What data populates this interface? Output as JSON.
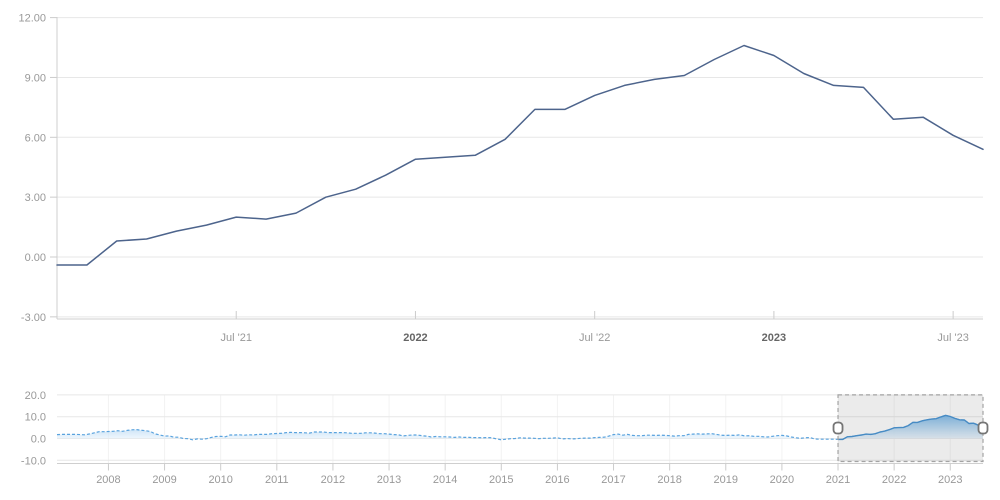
{
  "colors": {
    "background": "#ffffff",
    "grid": "#e7e7e7",
    "axis": "#cfcfcf",
    "tick": "#cccccc",
    "label": "#999999",
    "label_bold": "#666666",
    "main_line": "#4d648c",
    "nav_line": "#5aa3de",
    "nav_line_selected": "#3f8fd2",
    "nav_fill_top": "#7db9e8",
    "nav_fill_bottom": "#eaf4fc",
    "selection_fill": "rgba(120,120,120,0.15)",
    "selection_border": "#a3a3a3",
    "nav_year_gridline": "rgba(0,0,0,0.05)",
    "handle_fill": "#ffffff",
    "handle_border": "#757575"
  },
  "chart_data": [
    {
      "type": "line",
      "title": "",
      "xlabel": "",
      "ylabel": "",
      "ylim": [
        -3.25,
        12.3
      ],
      "grid": "horizontal",
      "legend_position": "none",
      "categories": [
        "Jan 2021",
        "Feb 2021",
        "Mar 2021",
        "Apr 2021",
        "May 2021",
        "Jun 2021",
        "Jul 2021",
        "Aug 2021",
        "Sep 2021",
        "Oct 2021",
        "Nov 2021",
        "Dec 2021",
        "Jan 2022",
        "Feb 2022",
        "Mar 2022",
        "Apr 2022",
        "May 2022",
        "Jun 2022",
        "Jul 2022",
        "Aug 2022",
        "Sep 2022",
        "Oct 2022",
        "Nov 2022",
        "Dec 2022",
        "Jan 2023",
        "Feb 2023",
        "Mar 2023",
        "Apr 2023",
        "May 2023",
        "Jun 2023",
        "Jul 2023",
        "Aug 2023"
      ],
      "values": [
        -0.4,
        -0.4,
        0.8,
        0.9,
        1.3,
        1.6,
        2.0,
        1.9,
        2.2,
        3.0,
        3.4,
        4.1,
        4.9,
        5.0,
        5.1,
        5.9,
        7.4,
        7.4,
        8.1,
        8.6,
        8.9,
        9.1,
        9.9,
        10.6,
        10.1,
        9.2,
        8.6,
        8.5,
        6.9,
        7.0,
        6.1,
        5.4
      ],
      "y_tick_labels": [
        {
          "value": 12,
          "label": "12.00"
        },
        {
          "value": 9,
          "label": "9.00"
        },
        {
          "value": 6,
          "label": "6.00"
        },
        {
          "value": 3,
          "label": "3.00"
        },
        {
          "value": 0,
          "label": "0.00"
        },
        {
          "value": -3,
          "label": "-3.00"
        }
      ],
      "x_tick_labels": [
        {
          "index": 6,
          "label": "Jul '21",
          "bold": false
        },
        {
          "index": 12,
          "label": "2022",
          "bold": true
        },
        {
          "index": 18,
          "label": "Jul '22",
          "bold": false
        },
        {
          "index": 24,
          "label": "2023",
          "bold": true
        },
        {
          "index": 30,
          "label": "Jul '23",
          "bold": false
        }
      ]
    },
    {
      "type": "area",
      "title": "",
      "role": "navigator",
      "x_start": "2007-02",
      "frequency": "monthly",
      "ylim": [
        -13,
        23
      ],
      "grid": "both",
      "legend_position": "none",
      "values": [
        1.8,
        1.9,
        1.9,
        1.9,
        1.9,
        1.8,
        1.7,
        2.1,
        2.6,
        3.1,
        3.1,
        3.2,
        3.3,
        3.6,
        3.3,
        3.7,
        4.0,
        4.1,
        3.8,
        3.6,
        3.2,
        2.1,
        1.6,
        1.1,
        1.2,
        0.6,
        0.6,
        0.0,
        -0.1,
        -0.6,
        -0.2,
        -0.3,
        -0.1,
        0.5,
        0.9,
        1.0,
        0.8,
        1.6,
        1.6,
        1.7,
        1.5,
        1.7,
        1.6,
        1.9,
        1.9,
        1.9,
        2.2,
        2.3,
        2.4,
        2.7,
        2.8,
        2.7,
        2.7,
        2.6,
        2.5,
        3.0,
        3.0,
        3.0,
        2.7,
        2.7,
        2.7,
        2.7,
        2.6,
        2.4,
        2.4,
        2.4,
        2.6,
        2.6,
        2.5,
        2.2,
        2.2,
        2.0,
        1.8,
        1.7,
        1.2,
        1.4,
        1.6,
        1.6,
        1.3,
        1.1,
        0.7,
        0.9,
        0.8,
        0.8,
        0.7,
        0.5,
        0.7,
        0.5,
        0.5,
        0.4,
        0.4,
        0.3,
        0.4,
        0.3,
        -0.2,
        -0.6,
        -0.3,
        -0.1,
        0.0,
        0.3,
        0.2,
        0.2,
        0.1,
        -0.1,
        0.1,
        0.1,
        0.2,
        0.3,
        -0.2,
        0.0,
        -0.2,
        -0.1,
        0.1,
        0.2,
        0.2,
        0.4,
        0.5,
        0.6,
        1.1,
        1.8,
        2.0,
        1.5,
        1.9,
        1.4,
        1.3,
        1.3,
        1.5,
        1.5,
        1.4,
        1.5,
        1.4,
        1.3,
        1.1,
        1.3,
        1.3,
        1.9,
        2.0,
        2.1,
        2.0,
        2.1,
        2.2,
        1.9,
        1.5,
        1.4,
        1.5,
        1.4,
        1.7,
        1.2,
        1.3,
        1.0,
        1.0,
        0.8,
        0.7,
        1.0,
        1.3,
        1.4,
        1.2,
        0.7,
        0.3,
        0.1,
        0.3,
        0.4,
        -0.2,
        -0.3,
        -0.3,
        -0.3,
        -0.3,
        -0.4,
        -0.4,
        0.8,
        0.9,
        1.3,
        1.6,
        2.0,
        1.9,
        2.2,
        3.0,
        3.4,
        4.1,
        4.9,
        5.0,
        5.1,
        5.9,
        7.4,
        7.4,
        8.1,
        8.6,
        8.9,
        9.1,
        9.9,
        10.6,
        10.1,
        9.2,
        8.6,
        8.5,
        6.9,
        7.0,
        6.1,
        5.4
      ],
      "y_tick_labels": [
        {
          "value": 20,
          "label": "20.0"
        },
        {
          "value": 10,
          "label": "10.0"
        },
        {
          "value": 0,
          "label": "0.0"
        },
        {
          "value": -10,
          "label": "-10.0"
        }
      ],
      "x_tick_labels": [
        {
          "month_index": 11,
          "label": "2008"
        },
        {
          "month_index": 23,
          "label": "2009"
        },
        {
          "month_index": 35,
          "label": "2010"
        },
        {
          "month_index": 47,
          "label": "2011"
        },
        {
          "month_index": 59,
          "label": "2012"
        },
        {
          "month_index": 71,
          "label": "2013"
        },
        {
          "month_index": 83,
          "label": "2014"
        },
        {
          "month_index": 95,
          "label": "2015"
        },
        {
          "month_index": 107,
          "label": "2016"
        },
        {
          "month_index": 119,
          "label": "2017"
        },
        {
          "month_index": 131,
          "label": "2018"
        },
        {
          "month_index": 143,
          "label": "2019"
        },
        {
          "month_index": 155,
          "label": "2020"
        },
        {
          "month_index": 167,
          "label": "2021"
        },
        {
          "month_index": 179,
          "label": "2022"
        },
        {
          "month_index": 191,
          "label": "2023"
        }
      ],
      "selection": {
        "start_month_index": 167,
        "end_month_index": 198
      }
    }
  ]
}
